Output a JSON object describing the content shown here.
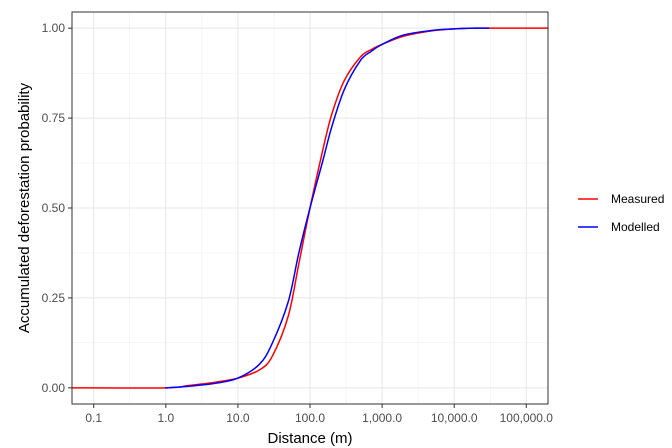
{
  "chart_data": {
    "type": "line",
    "xlabel": "Distance (m)",
    "ylabel": "Accumulated deforestation probability",
    "x_scale": "log10",
    "xlim": [
      0.05,
      200000
    ],
    "ylim": [
      -0.045,
      1.045
    ],
    "x_ticks": [
      0.1,
      1,
      10,
      100,
      1000,
      10000,
      100000
    ],
    "x_tick_labels": [
      "0.1",
      "1.0",
      "10.0",
      "100.0",
      "1,000.0",
      "10,000.0",
      "100,000.0"
    ],
    "y_ticks": [
      0,
      0.25,
      0.5,
      0.75,
      1.0
    ],
    "y_tick_labels": [
      "0.00",
      "0.25",
      "0.50",
      "0.75",
      "1.00"
    ],
    "grid": true,
    "legend_position": "right",
    "series": [
      {
        "name": "Measured",
        "color": "#ff0000",
        "x": [
          0.05,
          1,
          2,
          5,
          10,
          20,
          30,
          50,
          70,
          100,
          150,
          200,
          300,
          500,
          700,
          1000,
          2000,
          5000,
          10000,
          20000,
          30000,
          100000,
          200000
        ],
        "y": [
          0,
          0,
          0.006,
          0.016,
          0.027,
          0.05,
          0.088,
          0.2,
          0.345,
          0.5,
          0.66,
          0.76,
          0.855,
          0.92,
          0.94,
          0.955,
          0.978,
          0.993,
          0.998,
          1.0,
          1.0,
          1.0,
          1.0
        ]
      },
      {
        "name": "Modelled",
        "color": "#0000ff",
        "x": [
          1,
          2,
          5,
          10,
          20,
          30,
          50,
          70,
          100,
          150,
          200,
          300,
          500,
          700,
          1000,
          2000,
          5000,
          10000,
          20000,
          30000
        ],
        "y": [
          0,
          0.004,
          0.013,
          0.027,
          0.066,
          0.124,
          0.24,
          0.375,
          0.5,
          0.63,
          0.725,
          0.83,
          0.91,
          0.935,
          0.955,
          0.981,
          0.994,
          0.998,
          1.0,
          1.0
        ]
      }
    ]
  }
}
